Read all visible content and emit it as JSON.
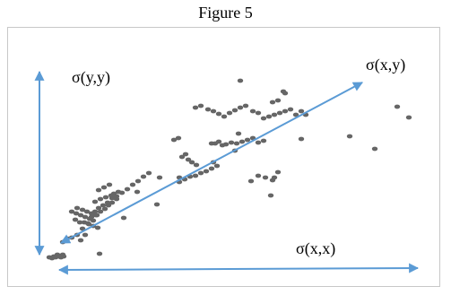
{
  "figure": {
    "title": "Figure 5"
  },
  "chart_data": {
    "type": "scatter",
    "title": "Figure 5",
    "series": [
      {
        "points": [
          [
            55,
            287
          ],
          [
            58,
            288
          ],
          [
            60,
            286
          ],
          [
            62,
            287
          ],
          [
            65,
            286
          ],
          [
            68,
            287
          ],
          [
            71,
            286
          ],
          [
            64,
            284
          ],
          [
            70,
            284
          ],
          [
            70,
            270
          ],
          [
            75,
            266
          ],
          [
            80,
            265
          ],
          [
            86,
            262
          ],
          [
            90,
            268
          ],
          [
            95,
            262
          ],
          [
            92,
            255
          ],
          [
            98,
            249
          ],
          [
            102,
            242
          ],
          [
            106,
            236
          ],
          [
            110,
            232
          ],
          [
            115,
            229
          ],
          [
            120,
            226
          ],
          [
            125,
            221
          ],
          [
            130,
            219
          ],
          [
            108,
            240
          ],
          [
            112,
            236
          ],
          [
            117,
            233
          ],
          [
            121,
            229
          ],
          [
            125,
            226
          ],
          [
            130,
            222
          ],
          [
            136,
            215
          ],
          [
            142,
            211
          ],
          [
            148,
            206
          ],
          [
            154,
            202
          ],
          [
            160,
            197
          ],
          [
            166,
            193
          ],
          [
            80,
            236
          ],
          [
            85,
            238
          ],
          [
            90,
            240
          ],
          [
            95,
            242
          ],
          [
            100,
            244
          ],
          [
            104,
            246
          ],
          [
            86,
            232
          ],
          [
            92,
            234
          ],
          [
            97,
            236
          ],
          [
            102,
            238
          ],
          [
            107,
            240
          ],
          [
            94,
            248
          ],
          [
            99,
            250
          ],
          [
            104,
            252
          ],
          [
            109,
            254
          ],
          [
            84,
            245
          ],
          [
            89,
            248
          ],
          [
            106,
            225
          ],
          [
            112,
            222
          ],
          [
            118,
            220
          ],
          [
            124,
            218
          ],
          [
            110,
            212
          ],
          [
            116,
            209
          ],
          [
            122,
            206
          ],
          [
            127,
            216
          ],
          [
            132,
            214
          ],
          [
            153,
            214
          ],
          [
            138,
            243
          ],
          [
            175,
            228
          ],
          [
            178,
            198
          ],
          [
            200,
            198
          ],
          [
            203,
            175
          ],
          [
            207,
            172
          ],
          [
            210,
            178
          ],
          [
            214,
            181
          ],
          [
            219,
            184
          ],
          [
            200,
            203
          ],
          [
            206,
            200
          ],
          [
            212,
            197
          ],
          [
            218,
            196
          ],
          [
            224,
            193
          ],
          [
            230,
            191
          ],
          [
            236,
            188
          ],
          [
            242,
            185
          ],
          [
            194,
            156
          ],
          [
            199,
            154
          ],
          [
            236,
            160
          ],
          [
            240,
            160
          ],
          [
            244,
            158
          ],
          [
            248,
            162
          ],
          [
            252,
            161
          ],
          [
            258,
            159
          ],
          [
            264,
            160
          ],
          [
            270,
            158
          ],
          [
            276,
            156
          ],
          [
            282,
            154
          ],
          [
            288,
            159
          ],
          [
            294,
            157
          ],
          [
            218,
            120
          ],
          [
            224,
            118
          ],
          [
            232,
            122
          ],
          [
            238,
            124
          ],
          [
            244,
            127
          ],
          [
            250,
            130
          ],
          [
            256,
            126
          ],
          [
            262,
            123
          ],
          [
            268,
            120
          ],
          [
            274,
            118
          ],
          [
            282,
            124
          ],
          [
            288,
            126
          ],
          [
            294,
            132
          ],
          [
            300,
            130
          ],
          [
            306,
            128
          ],
          [
            312,
            126
          ],
          [
            318,
            124
          ],
          [
            324,
            122
          ],
          [
            330,
            128
          ],
          [
            336,
            124
          ],
          [
            238,
            181
          ],
          [
            262,
            168
          ],
          [
            266,
            149
          ],
          [
            268,
            90
          ],
          [
            304,
            114
          ],
          [
            310,
            112
          ],
          [
            316,
            102
          ],
          [
            280,
            202
          ],
          [
            288,
            196
          ],
          [
            296,
            198
          ],
          [
            304,
            201
          ],
          [
            310,
            192
          ],
          [
            336,
            155
          ],
          [
            302,
            218
          ],
          [
            306,
            198
          ],
          [
            318,
            104
          ],
          [
            341,
            128
          ],
          [
            390,
            152
          ],
          [
            418,
            166
          ],
          [
            443,
            119
          ],
          [
            456,
            131
          ],
          [
            111,
            283
          ]
        ]
      }
    ],
    "annotations": [
      {
        "text": "σ(y,y)"
      },
      {
        "text": "σ(x,y)"
      },
      {
        "text": "σ(x,x)"
      }
    ],
    "colors": {
      "markers": "#666666",
      "arrows": "#5b9bd5"
    }
  }
}
